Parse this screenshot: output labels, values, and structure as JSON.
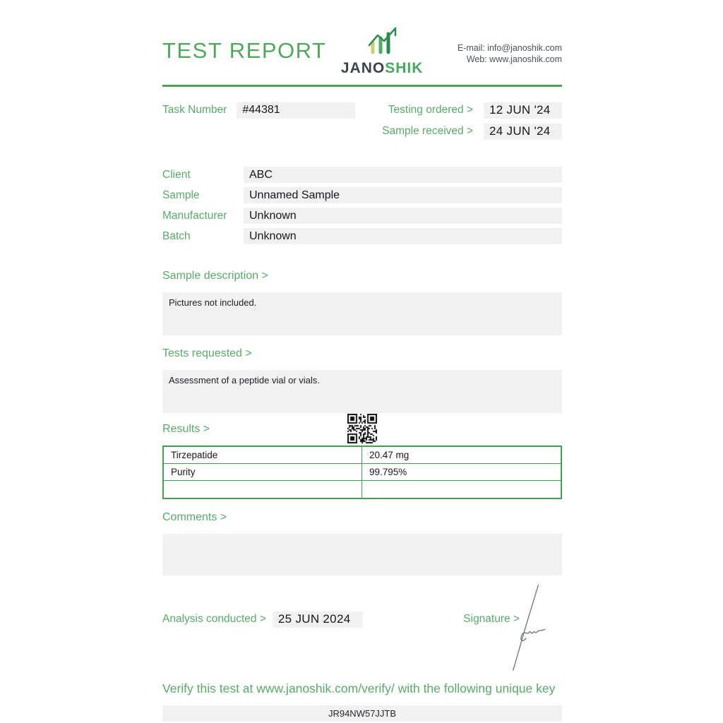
{
  "header": {
    "title": "TEST REPORT",
    "logo_jano": "JANO",
    "logo_shik": "SHIK",
    "email_line": "E-mail: info@janoshik.com",
    "web_line": "Web: www.janoshik.com"
  },
  "task": {
    "label": "Task Number",
    "value": "#44381",
    "testing_ordered_label": "Testing ordered  >",
    "testing_ordered_value": "12 JUN '24",
    "sample_received_label": "Sample received >",
    "sample_received_value": "24 JUN '24"
  },
  "info_fields": [
    {
      "label": "Client",
      "value": "ABC"
    },
    {
      "label": "Sample",
      "value": "Unnamed Sample"
    },
    {
      "label": "Manufacturer",
      "value": "Unknown"
    },
    {
      "label": "Batch",
      "value": "Unknown"
    }
  ],
  "sections": {
    "sample_description_label": "Sample description >",
    "sample_description_text": "Pictures not included.",
    "tests_requested_label": "Tests requested >",
    "tests_requested_text": "Assessment of a peptide vial or vials.",
    "results_label": "Results >",
    "comments_label": "Comments >",
    "comments_text": ""
  },
  "results_table": {
    "rows": [
      {
        "name": "Tirzepatide",
        "value": "20.47 mg"
      },
      {
        "name": "Purity",
        "value": "99.795%"
      },
      {
        "name": "",
        "value": ""
      }
    ]
  },
  "footer": {
    "analysis_label": "Analysis conducted >",
    "analysis_value": "25 JUN 2024",
    "signature_label": "Signature >",
    "verify_text": "Verify this test at www.janoshik.com/verify/ with the following unique key",
    "verify_key": "JR94NW57JJTB"
  },
  "colors": {
    "accent_green": "#4fa85c",
    "rule_green": "#4ba355",
    "table_border_green": "#44a050",
    "value_box_bg": "#f1f1f2",
    "dark_text": "#15181c"
  }
}
